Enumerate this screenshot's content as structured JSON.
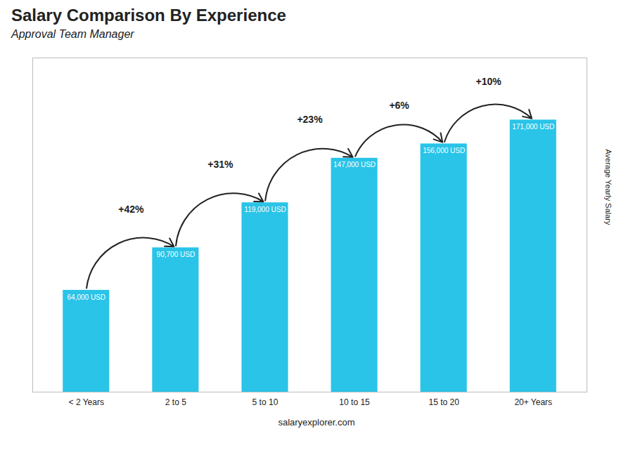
{
  "chart_data": {
    "type": "bar",
    "title": "Salary Comparison By Experience",
    "subtitle": "Approval Team Manager",
    "categories": [
      "< 2 Years",
      "2 to 5",
      "5 to 10",
      "10 to 15",
      "15 to 20",
      "20+ Years"
    ],
    "values": [
      64000,
      90700,
      119000,
      147000,
      156000,
      171000
    ],
    "value_labels": [
      "64,000 USD",
      "90,700 USD",
      "119,000 USD",
      "147,000 USD",
      "156,000 USD",
      "171,000 USD"
    ],
    "data_labels": true,
    "color": "#29C4E8",
    "ylabel": "Average Yearly Salary",
    "ylim": [
      0,
      210000
    ],
    "tick_labels": "x",
    "annotations": [
      "+42%",
      "+31%",
      "+23%",
      "+6%",
      "+10%"
    ],
    "caption": "salaryexplorer.com"
  }
}
